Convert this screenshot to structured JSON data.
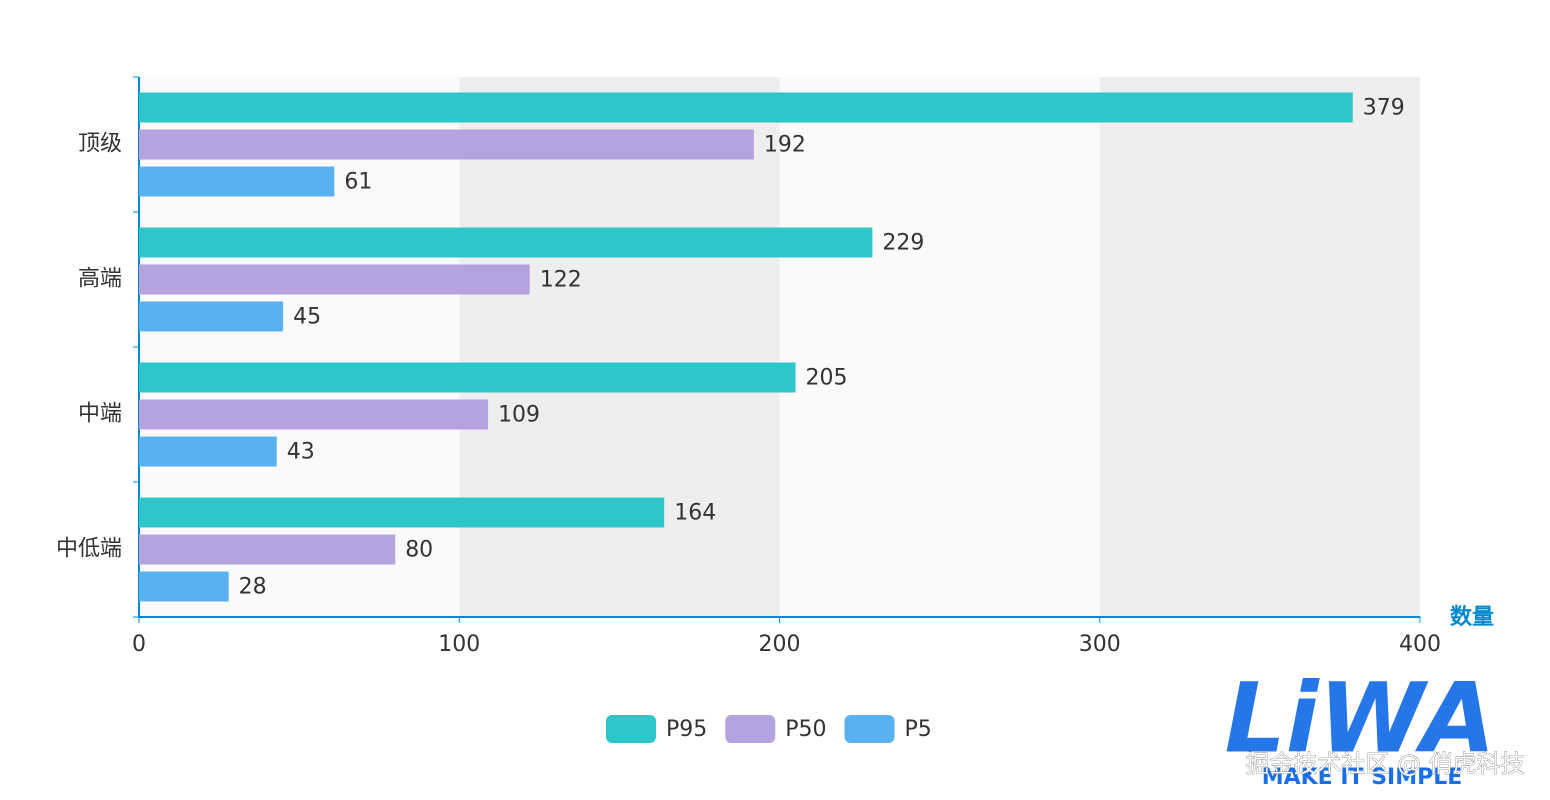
{
  "chart_data": {
    "type": "bar",
    "orientation": "horizontal",
    "categories": [
      "顶级",
      "高端",
      "中端",
      "中低端"
    ],
    "series": [
      {
        "name": "P95",
        "color": "#2ec7c9",
        "values": [
          379,
          229,
          205,
          164
        ]
      },
      {
        "name": "P50",
        "color": "#b6a2de",
        "values": [
          192,
          122,
          109,
          80
        ]
      },
      {
        "name": "P5",
        "color": "#5ab1ef",
        "values": [
          61,
          45,
          43,
          28
        ]
      }
    ],
    "xlim": [
      0,
      400
    ],
    "xticks": [
      0,
      100,
      200,
      300,
      400
    ],
    "x_label": "数量",
    "axis_color": "#008acd",
    "split_area_colors": [
      "#fafafa",
      "#eeeeee"
    ],
    "legend": "bottom"
  },
  "watermark": {
    "logo": "LiWA",
    "tagline": "MAKE IT SIMPLE",
    "credit": "掘金技术社区 @ 俏虎科技"
  }
}
